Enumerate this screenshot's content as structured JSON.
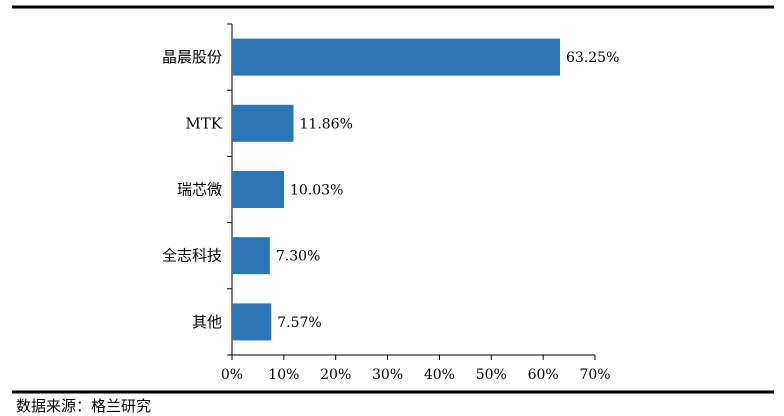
{
  "chart_data": {
    "type": "bar",
    "orientation": "horizontal",
    "categories": [
      "晶晨股份",
      "MTK",
      "瑞芯微",
      "全志科技",
      "其他"
    ],
    "values": [
      63.25,
      11.86,
      10.03,
      7.3,
      7.57
    ],
    "data_labels": [
      "63.25%",
      "11.86%",
      "10.03%",
      "7.30%",
      "7.57%"
    ],
    "xlim": [
      0,
      70
    ],
    "x_ticks": [
      0,
      10,
      20,
      30,
      40,
      50,
      60,
      70
    ],
    "x_tick_labels": [
      "0%",
      "10%",
      "20%",
      "30%",
      "40%",
      "50%",
      "60%",
      "70%"
    ],
    "bar_color": "#2E75B6",
    "grid": false,
    "legend": "none"
  },
  "source_note": "数据来源：格兰研究"
}
